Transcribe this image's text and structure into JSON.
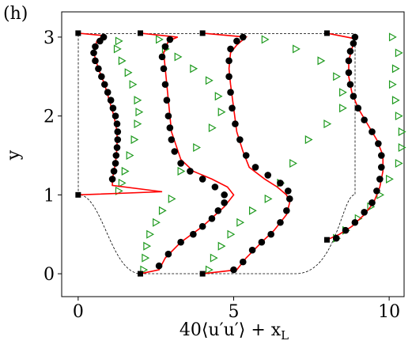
{
  "chart_data": {
    "type": "profiles",
    "panel_label": "(h)",
    "x_label": "40⟨u′u′⟩ + x",
    "x_label_subscript": "L",
    "y_label": "y",
    "xlim": [
      -0.53,
      10.48
    ],
    "ylim": [
      -0.29,
      3.32
    ],
    "xticks": [
      0,
      5,
      10
    ],
    "yticks": [
      0,
      1,
      2,
      3
    ],
    "series": [
      {
        "marker": "line",
        "color": "#ff0000",
        "x": [
          0,
          2.7,
          1.1,
          1.1,
          1.2,
          1.25,
          1.25,
          1.15,
          1.0,
          0.85,
          0.65,
          0.5,
          0.6,
          0.8,
          0
        ],
        "values": [
          1.0,
          1.04,
          1.12,
          1.2,
          1.4,
          1.6,
          1.8,
          2.0,
          2.2,
          2.4,
          2.6,
          2.8,
          2.95,
          3.02,
          3.05
        ]
      },
      {
        "marker": "line",
        "color": "#ff0000",
        "x": [
          2,
          2.6,
          2.8,
          3.3,
          4.0,
          4.7,
          5.0,
          4.8,
          4.3,
          3.7,
          3.3,
          3.0,
          2.9,
          2.8,
          2.75,
          2.9,
          3.2,
          2
        ],
        "values": [
          0,
          0.05,
          0.2,
          0.4,
          0.6,
          0.85,
          1.0,
          1.1,
          1.2,
          1.3,
          1.45,
          1.8,
          2.2,
          2.6,
          2.8,
          2.95,
          3.0,
          3.05
        ]
      },
      {
        "marker": "line",
        "color": "#ff0000",
        "x": [
          4,
          5.1,
          5.4,
          5.9,
          6.3,
          6.7,
          6.8,
          6.7,
          6.4,
          6.0,
          5.5,
          5.3,
          5.1,
          5.0,
          4.9,
          4.85,
          4.9,
          5.1,
          5.4,
          4
        ],
        "values": [
          0,
          0.05,
          0.2,
          0.4,
          0.55,
          0.75,
          0.9,
          1.0,
          1.1,
          1.2,
          1.35,
          1.55,
          1.8,
          2.1,
          2.4,
          2.6,
          2.8,
          2.9,
          3.0,
          3.05
        ]
      },
      {
        "marker": "line",
        "color": "#ff0000",
        "x": [
          8,
          8.4,
          8.8,
          9.2,
          9.5,
          9.7,
          9.8,
          9.8,
          9.6,
          9.3,
          9.0,
          8.8,
          8.7,
          8.7,
          8.8,
          8.9,
          8
        ],
        "values": [
          0.43,
          0.5,
          0.6,
          0.75,
          0.9,
          1.1,
          1.3,
          1.5,
          1.7,
          1.9,
          2.1,
          2.3,
          2.5,
          2.7,
          2.85,
          2.98,
          3.05
        ]
      },
      {
        "marker": "circle",
        "color": "#000000",
        "x": [
          1.1,
          1.15,
          1.2,
          1.22,
          1.25,
          1.27,
          1.27,
          1.25,
          1.2,
          1.12,
          1.05,
          0.95,
          0.85,
          0.75,
          0.65,
          0.55,
          0.5,
          0.55,
          0.7,
          0.82,
          2.6,
          2.9,
          3.3,
          3.7,
          4.0,
          4.3,
          4.5,
          4.7,
          4.7,
          4.4,
          4.0,
          3.6,
          3.3,
          3.1,
          3.0,
          2.95,
          2.9,
          2.85,
          2.8,
          2.75,
          2.7,
          2.8,
          2.95,
          5.0,
          5.3,
          5.6,
          5.9,
          6.2,
          6.5,
          6.7,
          6.8,
          6.75,
          6.5,
          6.1,
          5.7,
          5.4,
          5.2,
          5.05,
          4.95,
          4.9,
          4.85,
          4.85,
          4.9,
          5.1,
          5.3,
          8.3,
          8.6,
          8.9,
          9.2,
          9.45,
          9.6,
          9.7,
          9.75,
          9.75,
          9.65,
          9.45,
          9.2,
          9.0,
          8.85,
          8.75,
          8.7,
          8.7,
          8.75,
          8.85,
          8.9
        ],
        "values": [
          1.2,
          1.3,
          1.4,
          1.5,
          1.6,
          1.7,
          1.8,
          1.9,
          2.0,
          2.1,
          2.2,
          2.3,
          2.4,
          2.5,
          2.6,
          2.7,
          2.8,
          2.88,
          2.95,
          3.0,
          0.1,
          0.25,
          0.4,
          0.5,
          0.6,
          0.7,
          0.8,
          0.9,
          1.0,
          1.1,
          1.2,
          1.3,
          1.4,
          1.55,
          1.7,
          1.85,
          2.0,
          2.2,
          2.4,
          2.6,
          2.75,
          2.88,
          2.97,
          0.05,
          0.15,
          0.3,
          0.4,
          0.5,
          0.65,
          0.8,
          0.95,
          1.05,
          1.15,
          1.25,
          1.35,
          1.5,
          1.7,
          1.9,
          2.1,
          2.3,
          2.5,
          2.7,
          2.85,
          2.95,
          3.0,
          0.45,
          0.55,
          0.65,
          0.78,
          0.9,
          1.05,
          1.2,
          1.35,
          1.5,
          1.65,
          1.8,
          1.95,
          2.1,
          2.25,
          2.4,
          2.55,
          2.7,
          2.82,
          2.92,
          3.0
        ]
      },
      {
        "marker": "triangle",
        "color": "#1e9a1e",
        "x": [
          1.3,
          1.4,
          1.5,
          1.65,
          1.8,
          1.9,
          1.95,
          1.9,
          1.75,
          1.6,
          1.4,
          1.25,
          1.3,
          2.1,
          2.15,
          2.2,
          2.3,
          2.5,
          2.7,
          3.0,
          3.3,
          3.8,
          4.3,
          4.6,
          4.5,
          4.2,
          3.7,
          3.2,
          2.8,
          2.6,
          4.2,
          4.35,
          4.6,
          4.9,
          5.2,
          5.6,
          6.1,
          6.5,
          6.9,
          7.4,
          8.0,
          8.5,
          8.5,
          8.3,
          7.8,
          7.0,
          6.0,
          8.3,
          8.6,
          9.0,
          9.4,
          9.7,
          10.0,
          10.3,
          10.4,
          10.4,
          10.3,
          10.2,
          10.1,
          10.2,
          10.3,
          10.1
        ],
        "values": [
          1.05,
          1.15,
          1.3,
          1.5,
          1.7,
          1.9,
          2.05,
          2.2,
          2.4,
          2.55,
          2.7,
          2.85,
          2.95,
          0.05,
          0.2,
          0.35,
          0.5,
          0.65,
          0.8,
          0.95,
          1.3,
          1.6,
          1.85,
          2.05,
          2.25,
          2.45,
          2.6,
          2.75,
          2.85,
          2.97,
          0.05,
          0.2,
          0.35,
          0.5,
          0.65,
          0.8,
          0.95,
          1.15,
          1.4,
          1.7,
          1.9,
          2.1,
          2.3,
          2.5,
          2.7,
          2.85,
          2.97,
          0.45,
          0.55,
          0.7,
          0.85,
          1.0,
          1.2,
          1.4,
          1.6,
          1.8,
          2.0,
          2.2,
          2.4,
          2.6,
          2.8,
          3.0
        ]
      },
      {
        "marker": "square",
        "color": "#000000",
        "x": [
          0,
          0,
          2,
          2,
          4,
          4,
          8,
          8
        ],
        "values": [
          3.05,
          1.0,
          3.05,
          0,
          3.05,
          0,
          3.05,
          0.43
        ]
      }
    ]
  }
}
